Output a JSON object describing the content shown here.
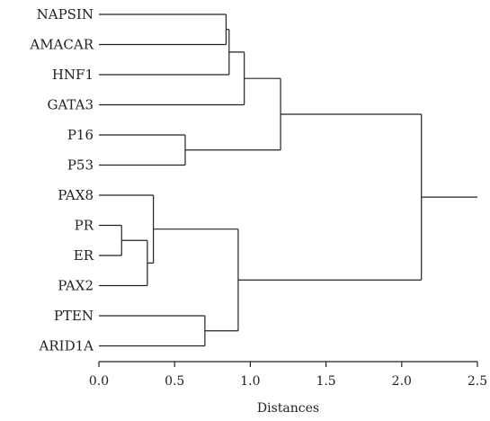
{
  "chart_data": {
    "type": "dendrogram",
    "xlabel": "Distances",
    "xlim": [
      0,
      2.5
    ],
    "xticks": [
      0.0,
      0.5,
      1.0,
      1.5,
      2.0,
      2.5
    ],
    "xtick_labels": [
      "0.0",
      "0.5",
      "1.0",
      "1.5",
      "2.0",
      "2.5"
    ],
    "leaves": [
      "NAPSIN",
      "AMACAR",
      "HNF1",
      "GATA3",
      "P16",
      "P53",
      "PAX8",
      "PR",
      "ER",
      "PAX2",
      "PTEN",
      "ARID1A"
    ],
    "merges": [
      {
        "id": "c1",
        "children": [
          "PR",
          "ER"
        ],
        "distance": 0.15
      },
      {
        "id": "c2",
        "children": [
          "c1",
          "PAX2"
        ],
        "distance": 0.32
      },
      {
        "id": "c3",
        "children": [
          "PAX8",
          "c2"
        ],
        "distance": 0.36
      },
      {
        "id": "c4",
        "children": [
          "P16",
          "P53"
        ],
        "distance": 0.57
      },
      {
        "id": "c5",
        "children": [
          "PTEN",
          "ARID1A"
        ],
        "distance": 0.7
      },
      {
        "id": "c6",
        "children": [
          "NAPSIN",
          "AMACAR"
        ],
        "distance": 0.84
      },
      {
        "id": "c7",
        "children": [
          "c6",
          "HNF1"
        ],
        "distance": 0.86
      },
      {
        "id": "c8",
        "children": [
          "c3",
          "c5"
        ],
        "distance": 0.92
      },
      {
        "id": "c9",
        "children": [
          "c7",
          "GATA3"
        ],
        "distance": 0.96
      },
      {
        "id": "c10",
        "children": [
          "c9",
          "c4"
        ],
        "distance": 1.2
      },
      {
        "id": "c11",
        "children": [
          "c10",
          "c8"
        ],
        "distance": 2.13
      }
    ],
    "root_extends_to": 2.5
  }
}
